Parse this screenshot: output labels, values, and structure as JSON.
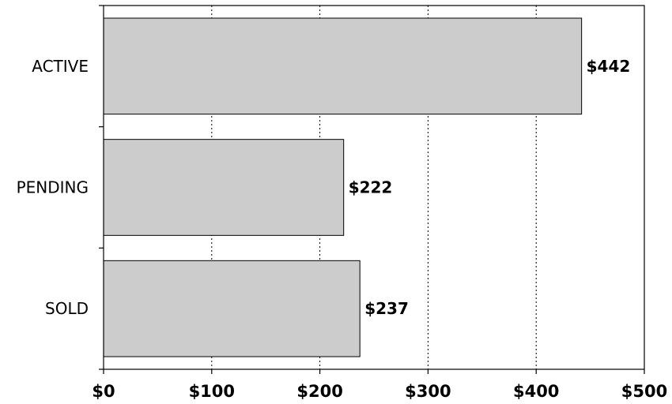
{
  "chart_data": {
    "type": "bar",
    "orientation": "horizontal",
    "title": "",
    "xlabel": "",
    "ylabel": "",
    "categories": [
      "ACTIVE",
      "PENDING",
      "SOLD"
    ],
    "values": [
      442,
      222,
      237
    ],
    "value_labels": [
      "$442",
      "$222",
      "$237"
    ],
    "xlim": [
      0,
      500
    ],
    "x_ticks": [
      0,
      100,
      200,
      300,
      400,
      500
    ],
    "x_tick_labels": [
      "$0",
      "$100",
      "$200",
      "$300",
      "$400",
      "$500"
    ],
    "grid": "vertical-dotted",
    "bar_color": "#cccccc",
    "legend": "none"
  }
}
